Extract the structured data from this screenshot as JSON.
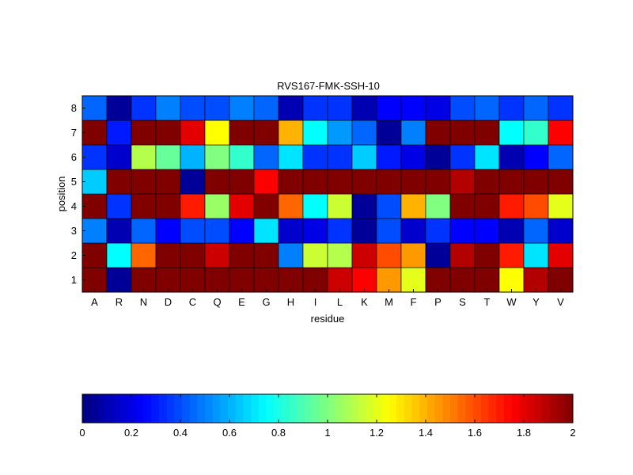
{
  "chart_data": [
    {
      "type": "heatmap",
      "title": "RVS167-FMK-SSH-10",
      "xlabel": "residue",
      "ylabel": "position",
      "x_categories": [
        "A",
        "R",
        "N",
        "D",
        "C",
        "Q",
        "E",
        "G",
        "H",
        "I",
        "L",
        "K",
        "M",
        "F",
        "P",
        "S",
        "T",
        "W",
        "Y",
        "V"
      ],
      "y_categories": [
        "1",
        "2",
        "3",
        "4",
        "5",
        "6",
        "7",
        "8"
      ],
      "clim": [
        0,
        2
      ],
      "colormap": "jet",
      "grid": true,
      "values": [
        [
          2.0,
          0.05,
          2.0,
          2.0,
          2.0,
          2.0,
          2.0,
          2.0,
          2.0,
          2.0,
          1.85,
          1.75,
          1.45,
          1.2,
          2.0,
          2.0,
          2.0,
          1.25,
          1.9,
          2.0
        ],
        [
          2.0,
          0.75,
          1.55,
          2.0,
          2.0,
          1.85,
          2.0,
          2.0,
          0.5,
          1.15,
          1.1,
          1.85,
          1.6,
          1.45,
          0.05,
          1.9,
          2.0,
          1.7,
          0.7,
          1.8
        ],
        [
          0.5,
          0.1,
          0.45,
          0.25,
          0.4,
          0.4,
          0.25,
          0.7,
          0.15,
          0.2,
          0.35,
          0.05,
          0.4,
          0.15,
          0.35,
          0.25,
          0.25,
          0.1,
          0.45,
          0.15
        ],
        [
          2.0,
          0.35,
          2.0,
          2.0,
          1.7,
          1.05,
          1.8,
          2.0,
          1.55,
          0.75,
          1.15,
          0.05,
          0.4,
          1.4,
          1.0,
          2.0,
          2.0,
          1.7,
          1.6,
          1.2
        ],
        [
          0.65,
          2.0,
          2.0,
          2.0,
          0.05,
          2.0,
          2.0,
          1.75,
          2.0,
          2.0,
          2.0,
          2.0,
          2.0,
          2.0,
          2.0,
          1.9,
          2.0,
          2.0,
          2.0,
          2.0
        ],
        [
          0.35,
          0.15,
          1.1,
          0.95,
          0.6,
          1.0,
          0.85,
          0.45,
          0.7,
          0.35,
          0.35,
          0.65,
          0.3,
          0.2,
          0.05,
          0.35,
          0.7,
          0.1,
          0.25,
          0.45
        ],
        [
          2.0,
          0.3,
          2.0,
          2.0,
          1.8,
          1.25,
          2.0,
          2.0,
          1.4,
          0.75,
          0.55,
          0.45,
          0.05,
          0.5,
          2.0,
          2.0,
          2.0,
          0.75,
          0.85,
          1.75
        ],
        [
          0.45,
          0.05,
          0.35,
          0.5,
          0.4,
          0.4,
          0.5,
          0.45,
          0.1,
          0.35,
          0.35,
          0.1,
          0.25,
          0.25,
          0.2,
          0.4,
          0.45,
          0.35,
          0.45,
          0.35
        ]
      ]
    },
    {
      "type": "colorbar",
      "colormap": "jet",
      "range": [
        0,
        2
      ],
      "tick_labels": [
        "0",
        "0.2",
        "0.4",
        "0.6",
        "0.8",
        "1",
        "1.2",
        "1.4",
        "1.6",
        "1.8",
        "2"
      ]
    }
  ]
}
